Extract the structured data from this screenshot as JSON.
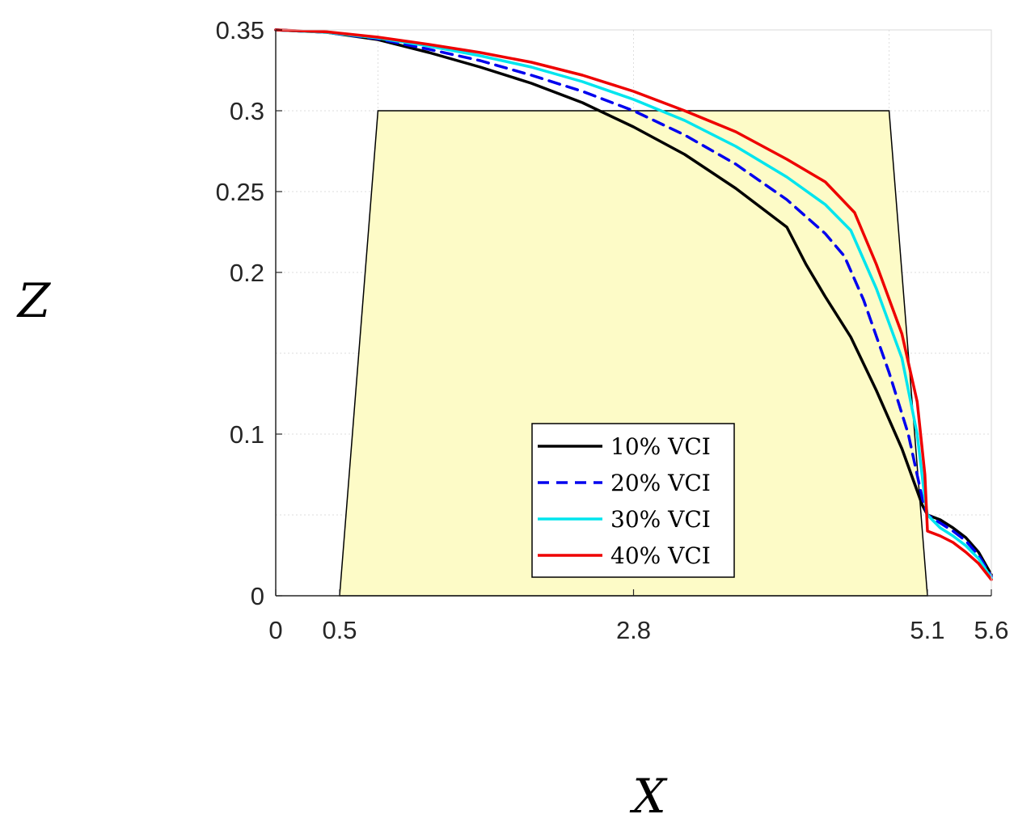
{
  "chart_data": {
    "type": "line",
    "xlabel": "X",
    "ylabel": "Z",
    "xlim": [
      0,
      5.6
    ],
    "ylim": [
      0,
      0.35
    ],
    "x_ticks": [
      0,
      0.5,
      2.8,
      5.1,
      5.6
    ],
    "x_tick_labels": [
      "0",
      "0.5",
      "2.8",
      "5.1",
      "5.6"
    ],
    "y_ticks": [
      0,
      0.1,
      0.2,
      0.25,
      0.3,
      0.35
    ],
    "y_tick_labels": [
      "0",
      "0.1",
      "0.2",
      "0.25",
      "0.3",
      "0.35"
    ],
    "x_grid": [
      0.8,
      2.8,
      4.8
    ],
    "y_grid": [
      0.05,
      0.1,
      0.15,
      0.2,
      0.25,
      0.3
    ],
    "grid": true,
    "legend_position": "bottom-center",
    "region": {
      "fill": "#fdfbc7",
      "stroke": "#000000",
      "points": [
        [
          0.5,
          0
        ],
        [
          0.8,
          0.3
        ],
        [
          4.8,
          0.3
        ],
        [
          5.1,
          0
        ]
      ]
    },
    "series": [
      {
        "name": "10% VCI",
        "color": "#000000",
        "dash": "solid",
        "points": [
          [
            0,
            0.35
          ],
          [
            0.4,
            0.3485
          ],
          [
            0.8,
            0.344
          ],
          [
            1.2,
            0.336
          ],
          [
            1.6,
            0.327
          ],
          [
            2.0,
            0.317
          ],
          [
            2.4,
            0.305
          ],
          [
            2.8,
            0.29
          ],
          [
            3.2,
            0.273
          ],
          [
            3.6,
            0.252
          ],
          [
            4.0,
            0.228
          ],
          [
            4.15,
            0.205
          ],
          [
            4.3,
            0.185
          ],
          [
            4.5,
            0.16
          ],
          [
            4.7,
            0.127
          ],
          [
            4.9,
            0.091
          ],
          [
            5.06,
            0.056
          ],
          [
            5.1,
            0.05
          ],
          [
            5.2,
            0.047
          ],
          [
            5.3,
            0.042
          ],
          [
            5.4,
            0.036
          ],
          [
            5.5,
            0.027
          ],
          [
            5.6,
            0.013
          ]
        ]
      },
      {
        "name": "20% VCI",
        "color": "#0000ee",
        "dash": "dashed",
        "points": [
          [
            0,
            0.35
          ],
          [
            0.4,
            0.3485
          ],
          [
            0.8,
            0.3445
          ],
          [
            1.2,
            0.338
          ],
          [
            1.6,
            0.331
          ],
          [
            2.0,
            0.322
          ],
          [
            2.4,
            0.312
          ],
          [
            2.8,
            0.3
          ],
          [
            3.2,
            0.285
          ],
          [
            3.6,
            0.267
          ],
          [
            4.0,
            0.245
          ],
          [
            4.3,
            0.224
          ],
          [
            4.45,
            0.21
          ],
          [
            4.6,
            0.183
          ],
          [
            4.8,
            0.138
          ],
          [
            4.95,
            0.1
          ],
          [
            5.06,
            0.06
          ],
          [
            5.1,
            0.05
          ],
          [
            5.2,
            0.045
          ],
          [
            5.3,
            0.04
          ],
          [
            5.4,
            0.034
          ],
          [
            5.5,
            0.025
          ],
          [
            5.6,
            0.012
          ]
        ]
      },
      {
        "name": "30% VCI",
        "color": "#00e5ee",
        "dash": "solid",
        "points": [
          [
            0,
            0.35
          ],
          [
            0.4,
            0.3485
          ],
          [
            0.8,
            0.345
          ],
          [
            1.2,
            0.34
          ],
          [
            1.6,
            0.334
          ],
          [
            2.0,
            0.327
          ],
          [
            2.4,
            0.318
          ],
          [
            2.8,
            0.307
          ],
          [
            3.2,
            0.294
          ],
          [
            3.6,
            0.278
          ],
          [
            4.0,
            0.259
          ],
          [
            4.3,
            0.242
          ],
          [
            4.5,
            0.226
          ],
          [
            4.7,
            0.19
          ],
          [
            4.9,
            0.147
          ],
          [
            5.02,
            0.1
          ],
          [
            5.08,
            0.06
          ],
          [
            5.1,
            0.05
          ],
          [
            5.2,
            0.042
          ],
          [
            5.3,
            0.037
          ],
          [
            5.4,
            0.031
          ],
          [
            5.5,
            0.023
          ],
          [
            5.6,
            0.011
          ]
        ]
      },
      {
        "name": "40% VCI",
        "color": "#ee0000",
        "dash": "solid",
        "points": [
          [
            0,
            0.35
          ],
          [
            0.4,
            0.3488
          ],
          [
            0.8,
            0.3455
          ],
          [
            1.2,
            0.341
          ],
          [
            1.6,
            0.336
          ],
          [
            2.0,
            0.33
          ],
          [
            2.4,
            0.322
          ],
          [
            2.8,
            0.312
          ],
          [
            3.2,
            0.3
          ],
          [
            3.6,
            0.287
          ],
          [
            4.0,
            0.27
          ],
          [
            4.3,
            0.256
          ],
          [
            4.53,
            0.237
          ],
          [
            4.7,
            0.205
          ],
          [
            4.9,
            0.162
          ],
          [
            5.02,
            0.12
          ],
          [
            5.08,
            0.075
          ],
          [
            5.1,
            0.04
          ],
          [
            5.2,
            0.037
          ],
          [
            5.3,
            0.033
          ],
          [
            5.4,
            0.027
          ],
          [
            5.5,
            0.02
          ],
          [
            5.6,
            0.01
          ]
        ]
      }
    ]
  }
}
